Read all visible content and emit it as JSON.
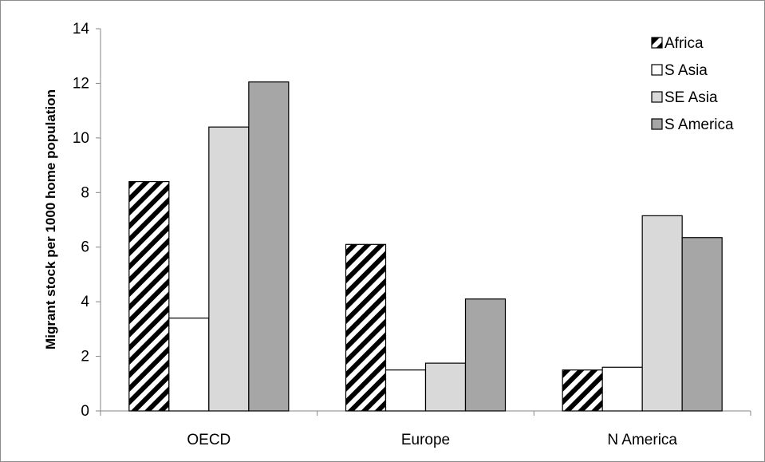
{
  "chart_data": {
    "type": "bar",
    "title": "",
    "xlabel": "",
    "ylabel": "Migrant stock per 1000 home population",
    "ylim": [
      0,
      14
    ],
    "yticks": [
      "0",
      "2",
      "4",
      "6",
      "8",
      "10",
      "12",
      "14"
    ],
    "categories": [
      "OECD",
      "Europe",
      "N America"
    ],
    "legend_position": "top-right",
    "grid": false,
    "series": [
      {
        "name": "Africa",
        "values": [
          8.4,
          6.1,
          1.5
        ],
        "fill": "hatch",
        "color": "#000000"
      },
      {
        "name": "S Asia",
        "values": [
          3.4,
          1.5,
          1.6
        ],
        "fill": "solid",
        "color": "#ffffff"
      },
      {
        "name": "SE Asia",
        "values": [
          10.4,
          1.75,
          7.15
        ],
        "fill": "solid",
        "color": "#d9d9d9"
      },
      {
        "name": "S America",
        "values": [
          12.05,
          4.1,
          6.35
        ],
        "fill": "solid",
        "color": "#a6a6a6"
      }
    ]
  }
}
